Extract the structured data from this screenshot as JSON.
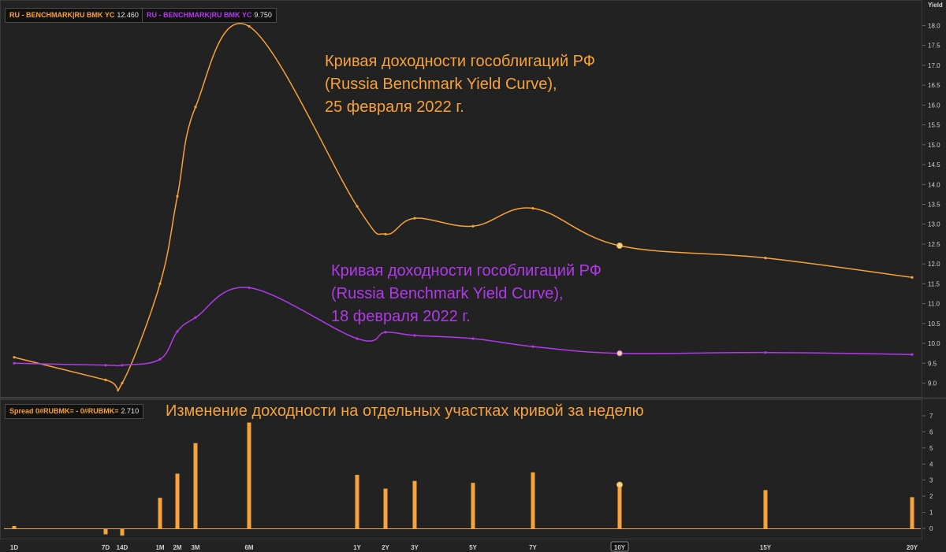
{
  "colors": {
    "background": "#222222",
    "panel_border": "#3a3a3a",
    "grid": "#2e2e2e",
    "axis_text": "#d0d0d0",
    "orange": "#f7a23a",
    "purple": "#b13ae8",
    "highlight_dot": "#e8d890"
  },
  "legend": {
    "orange": {
      "name": "RU - BENCHMARK|RU BMK YC",
      "value": "12.460"
    },
    "purple": {
      "name": "RU - BENCHMARK|RU BMK YC",
      "value": "9.750"
    },
    "spread": {
      "name": "Spread 0#RUBMK= - 0#RUBMK=",
      "value": "2.710"
    }
  },
  "annotations": {
    "orange_curve": [
      "Кривая доходности гособлигаций РФ",
      "(Russia Benchmark Yield Curve),",
      "25 февраля 2022 г."
    ],
    "purple_curve": [
      "Кривая доходности гособлигаций РФ",
      "(Russia Benchmark Yield Curve),",
      "18 февраля 2022 г."
    ],
    "spread_panel": "Изменение доходности на отдельных участках кривой за неделю"
  },
  "icons": {
    "highlight_marker": "circle-marker-icon"
  },
  "chart_data": [
    {
      "type": "line",
      "ylabel": "Yield",
      "ylim": [
        8.8,
        18.3
      ],
      "yticks": [
        "9.0",
        "9.5",
        "10.0",
        "10.5",
        "11.0",
        "11.5",
        "12.0",
        "12.5",
        "13.0",
        "13.5",
        "14.0",
        "14.5",
        "15.0",
        "15.5",
        "16.0",
        "16.5",
        "17.0",
        "17.5",
        "18.0"
      ],
      "grid": false,
      "legend_position": "top-left",
      "series": [
        {
          "name": "RU - BENCHMARK|RU BMK YC",
          "color": "orange",
          "points": [
            {
              "x": "1D",
              "y": 9.65
            },
            {
              "x": "7D",
              "y": 9.08
            },
            {
              "x": "14D",
              "y": 9.0
            },
            {
              "x": "1M",
              "y": 11.5
            },
            {
              "x": "2M",
              "y": 13.7
            },
            {
              "x": "3M",
              "y": 15.95
            },
            {
              "x": "6M",
              "y": 17.98
            },
            {
              "x": "1Y",
              "y": 13.45
            },
            {
              "x": "2Y",
              "y": 12.75
            },
            {
              "x": "3Y",
              "y": 13.15
            },
            {
              "x": "5Y",
              "y": 12.95
            },
            {
              "x": "7Y",
              "y": 13.4
            },
            {
              "x": "10Y",
              "y": 12.46
            },
            {
              "x": "15Y",
              "y": 12.15
            },
            {
              "x": "20Y",
              "y": 11.66
            }
          ]
        },
        {
          "name": "RU - BENCHMARK|RU BMK YC",
          "color": "purple",
          "points": [
            {
              "x": "1D",
              "y": 9.5
            },
            {
              "x": "7D",
              "y": 9.45
            },
            {
              "x": "14D",
              "y": 9.45
            },
            {
              "x": "1M",
              "y": 9.6
            },
            {
              "x": "2M",
              "y": 10.3
            },
            {
              "x": "3M",
              "y": 10.65
            },
            {
              "x": "6M",
              "y": 11.4
            },
            {
              "x": "1Y",
              "y": 10.12
            },
            {
              "x": "2Y",
              "y": 10.28
            },
            {
              "x": "3Y",
              "y": 10.2
            },
            {
              "x": "5Y",
              "y": 10.12
            },
            {
              "x": "7Y",
              "y": 9.92
            },
            {
              "x": "10Y",
              "y": 9.75
            },
            {
              "x": "15Y",
              "y": 9.77
            },
            {
              "x": "20Y",
              "y": 9.72
            }
          ]
        }
      ]
    },
    {
      "type": "bar",
      "ylim": [
        0,
        7.5
      ],
      "yticks": [
        "0",
        "1",
        "2",
        "3",
        "4",
        "5",
        "6",
        "7"
      ],
      "categories": [
        "1D",
        "7D",
        "14D",
        "1M",
        "2M",
        "3M",
        "6M",
        "1Y",
        "2Y",
        "3Y",
        "5Y",
        "7Y",
        "10Y",
        "15Y",
        "20Y"
      ],
      "series": [
        {
          "name": "Spread 0#RUBMK= - 0#RUBMK=",
          "values": [
            0.15,
            -0.37,
            -0.45,
            1.9,
            3.4,
            5.3,
            6.58,
            3.33,
            2.47,
            2.95,
            2.83,
            3.48,
            2.71,
            2.38,
            1.94
          ]
        }
      ],
      "highlight_category": "10Y"
    }
  ]
}
